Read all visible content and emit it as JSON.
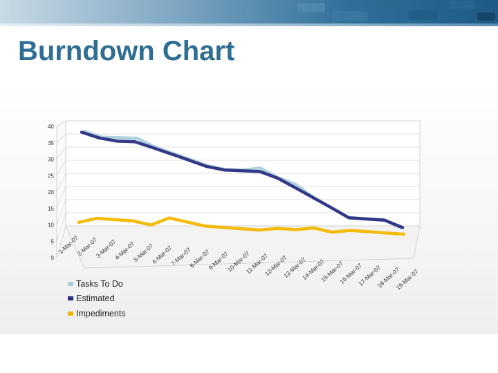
{
  "slide": {
    "title": "Burndown Chart"
  },
  "chart_data": {
    "type": "line",
    "view": "3d-perspective",
    "title": "",
    "xlabel": "",
    "ylabel": "",
    "ylim": [
      0,
      40
    ],
    "yticks": [
      0,
      5,
      10,
      15,
      20,
      25,
      30,
      35,
      40
    ],
    "grid": true,
    "legend_position": "bottom-left",
    "categories": [
      "1-Mar-07",
      "2-Mar-07",
      "3-Mar-07",
      "4-Mar-07",
      "5-Mar-07",
      "6-Mar-07",
      "7-Mar-07",
      "8-Mar-07",
      "9-Mar-07",
      "10-Mar-07",
      "11-Mar-07",
      "12-Mar-07",
      "13-Mar-07",
      "14-Mar-07",
      "15-Mar-07",
      "16-Mar-07",
      "17-Mar-07",
      "18-Mar-07",
      "19-Mar-07"
    ],
    "series": [
      {
        "name": "Tasks To Do",
        "color": "#a9cfdc",
        "values": [
          36,
          34,
          34,
          34,
          31,
          29,
          27,
          25,
          24,
          24,
          25,
          22,
          20,
          16,
          13,
          10,
          10,
          10,
          8
        ],
        "depth": 0
      },
      {
        "name": "Estimated",
        "color": "#2a2f82",
        "values": [
          37,
          35,
          34,
          34,
          32,
          30,
          28,
          26,
          25,
          25,
          25,
          23,
          20,
          17,
          14,
          11,
          11,
          11,
          9
        ],
        "depth": 1
      },
      {
        "name": "Impediments",
        "color": "#f2b800",
        "values": [
          4,
          6,
          6,
          6,
          5,
          8,
          7,
          6,
          6,
          6,
          6,
          7,
          7,
          8,
          7,
          8,
          8,
          8,
          8
        ],
        "depth": 2
      }
    ]
  }
}
